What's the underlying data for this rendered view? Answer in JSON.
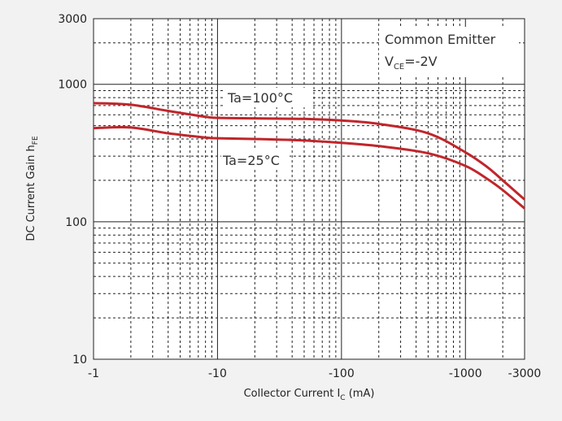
{
  "chart_data": {
    "type": "line",
    "xscale": "log",
    "yscale": "log",
    "xlim": [
      -1,
      -3000
    ],
    "ylim": [
      10,
      3000
    ],
    "grid": true,
    "x_ticks": [
      {
        "value": -1,
        "label": "-1"
      },
      {
        "value": -10,
        "label": "-10"
      },
      {
        "value": -100,
        "label": "-100"
      },
      {
        "value": -1000,
        "label": "-1000"
      },
      {
        "value": -3000,
        "label": "-3000"
      }
    ],
    "y_ticks": [
      {
        "value": 10,
        "label": "10"
      },
      {
        "value": 100,
        "label": "100"
      },
      {
        "value": 1000,
        "label": "1000"
      },
      {
        "value": 3000,
        "label": "3000"
      }
    ],
    "xlabel": {
      "main": "Collector Current I",
      "sub": "C",
      "unit": " (mA)"
    },
    "ylabel": {
      "main": "DC Current Gain h",
      "sub": "FE"
    },
    "conditions": {
      "line1": "Common Emitter",
      "line2_main": "V",
      "line2_sub": "CE",
      "line2_rest": "=-2V"
    },
    "series": [
      {
        "name": "Ta=100°C",
        "color": "#c0262b",
        "x": [
          -1,
          -2,
          -4,
          -8,
          -10,
          -20,
          -50,
          -100,
          -200,
          -500,
          -1000,
          -1500,
          -2000,
          -3000
        ],
        "y": [
          730,
          710,
          640,
          580,
          570,
          565,
          560,
          545,
          515,
          440,
          320,
          250,
          200,
          145
        ]
      },
      {
        "name": "Ta=25°C",
        "color": "#c0262b",
        "x": [
          -1,
          -2,
          -4,
          -8,
          -10,
          -20,
          -50,
          -100,
          -200,
          -500,
          -1000,
          -1500,
          -2000,
          -3000
        ],
        "y": [
          480,
          485,
          440,
          410,
          405,
          400,
          390,
          375,
          355,
          315,
          255,
          205,
          170,
          125
        ]
      }
    ]
  }
}
